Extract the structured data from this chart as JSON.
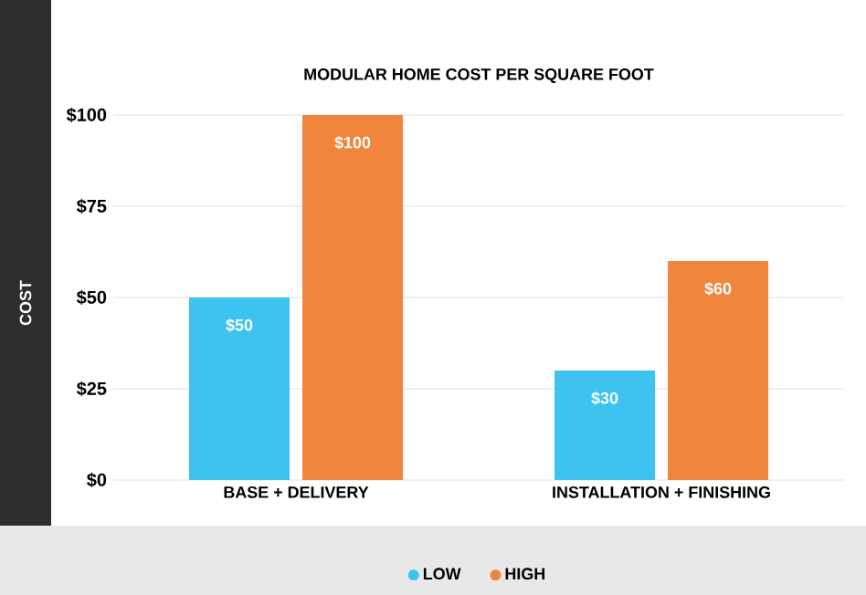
{
  "chart_data": {
    "type": "bar",
    "title": "MODULAR HOME COST PER SQUARE FOOT",
    "ylabel": "COST",
    "categories": [
      "BASE + DELIVERY",
      "INSTALLATION + FINISHING"
    ],
    "series": [
      {
        "name": "LOW",
        "color": "#3ec3f0",
        "values": [
          50,
          30
        ],
        "value_labels": [
          "$50",
          "$30"
        ]
      },
      {
        "name": "HIGH",
        "color": "#f0863e",
        "values": [
          100,
          60
        ],
        "value_labels": [
          "$100",
          "$60"
        ]
      }
    ],
    "ylim": [
      0,
      100
    ],
    "yticks": [
      {
        "value": 0,
        "label": "$0"
      },
      {
        "value": 25,
        "label": "$25"
      },
      {
        "value": 50,
        "label": "$50"
      },
      {
        "value": 75,
        "label": "$75"
      },
      {
        "value": 100,
        "label": "$100"
      }
    ],
    "grid": "y",
    "legend": "bottom"
  }
}
